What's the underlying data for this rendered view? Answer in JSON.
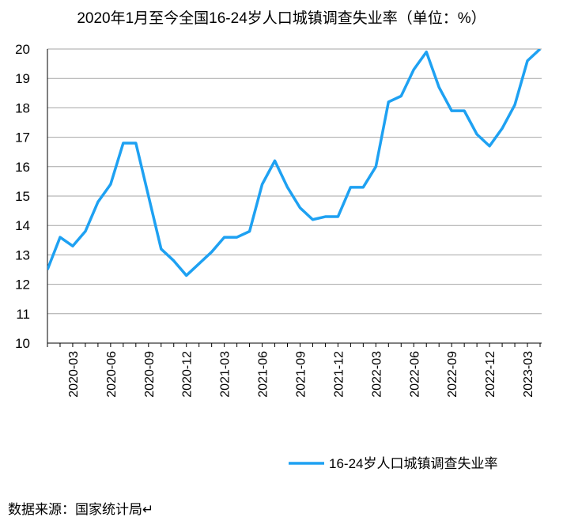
{
  "chart_data": {
    "type": "line",
    "title": "2020年1月至今全国16-24岁人口城镇调查失业率（单位：%）",
    "xlabel": "",
    "ylabel": "",
    "ylim": [
      10,
      20
    ],
    "yticks": [
      "10",
      "11",
      "12",
      "13",
      "14",
      "15",
      "16",
      "17",
      "18",
      "19",
      "20"
    ],
    "x": [
      "2020-01",
      "2020-02",
      "2020-03",
      "2020-04",
      "2020-05",
      "2020-06",
      "2020-07",
      "2020-08",
      "2020-09",
      "2020-10",
      "2020-11",
      "2020-12",
      "2021-01",
      "2021-02",
      "2021-03",
      "2021-04",
      "2021-05",
      "2021-06",
      "2021-07",
      "2021-08",
      "2021-09",
      "2021-10",
      "2021-11",
      "2021-12",
      "2022-01",
      "2022-02",
      "2022-03",
      "2022-04",
      "2022-05",
      "2022-06",
      "2022-07",
      "2022-08",
      "2022-09",
      "2022-10",
      "2022-11",
      "2022-12",
      "2023-01",
      "2023-02",
      "2023-03",
      "2023-04"
    ],
    "xtick_labels": [
      "2020-03",
      "2020-06",
      "2020-09",
      "2020-12",
      "2021-03",
      "2021-06",
      "2021-09",
      "2021-12",
      "2022-03",
      "2022-06",
      "2022-09",
      "2022-12",
      "2023-03"
    ],
    "series": [
      {
        "name": "16-24岁人口城镇调查失业率",
        "color": "#1ea1f2",
        "values": [
          12.5,
          13.6,
          13.3,
          13.8,
          14.8,
          15.4,
          16.8,
          16.8,
          15.0,
          13.2,
          12.8,
          12.3,
          12.7,
          13.1,
          13.6,
          13.6,
          13.8,
          15.4,
          16.2,
          15.3,
          14.6,
          14.2,
          14.3,
          14.3,
          15.3,
          15.3,
          16.0,
          18.2,
          18.4,
          19.3,
          19.9,
          18.7,
          17.9,
          17.9,
          17.1,
          16.7,
          17.3,
          18.1,
          19.6,
          20.0
        ]
      }
    ],
    "grid": true,
    "legend_position": "bottom-right"
  },
  "source": "数据来源：国家统计局↵"
}
